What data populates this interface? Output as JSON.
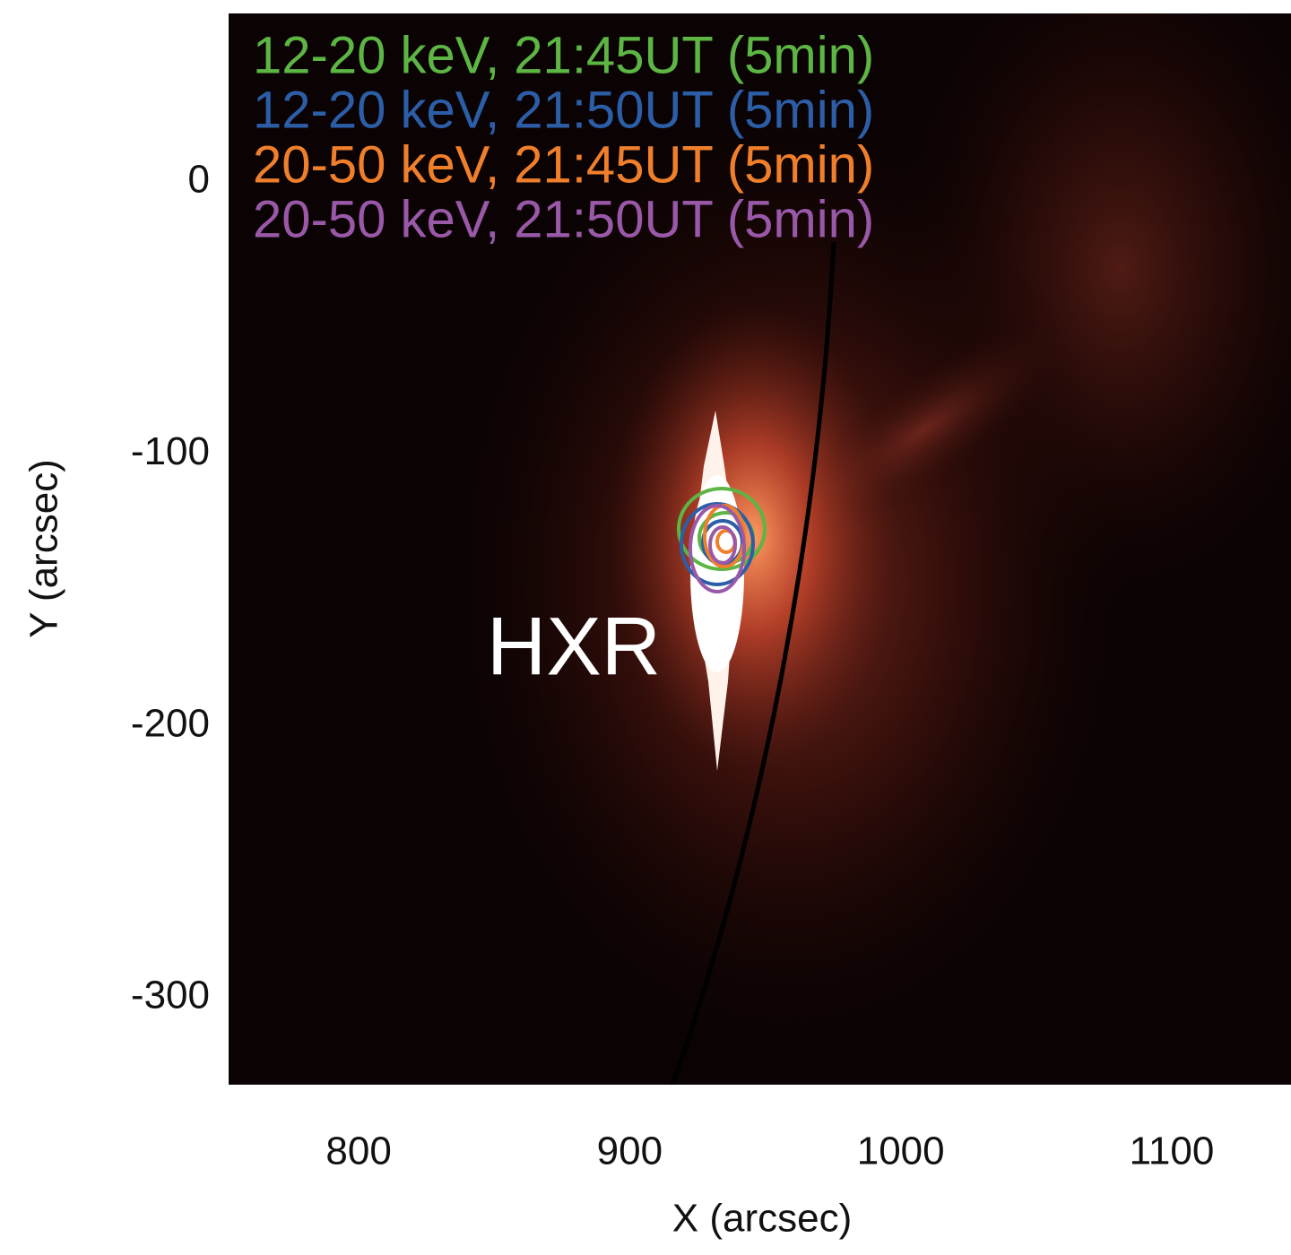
{
  "chart_data": {
    "type": "image",
    "x_label": "X (arcsec)",
    "y_label": "Y (arcsec)",
    "annotation": "HXR",
    "xlim": [
      752,
      1144
    ],
    "xticks": [
      800,
      900,
      1000,
      1100
    ],
    "ylim": [
      -332,
      62
    ],
    "yticks": [
      0,
      -100,
      -200,
      -300
    ],
    "series": [
      {
        "name": "12-20 keV, 21:45UT (5min)",
        "color": "#5db543"
      },
      {
        "name": "12-20 keV, 21:50UT (5min)",
        "color": "#2c5ea8"
      },
      {
        "name": "20-50 keV, 21:45UT (5min)",
        "color": "#f07f2c"
      },
      {
        "name": "20-50 keV, 21:50UT (5min)",
        "color": "#9a58a8"
      }
    ]
  }
}
